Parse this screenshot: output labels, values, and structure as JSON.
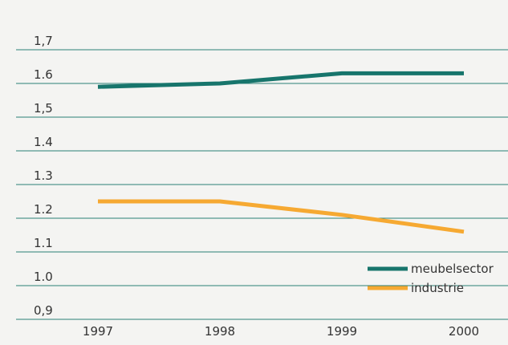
{
  "chart_data": {
    "type": "line",
    "x": [
      1997,
      1998,
      1999,
      2000
    ],
    "series": [
      {
        "name": "meubelsector",
        "color": "#17756c",
        "values": [
          1.59,
          1.6,
          1.63,
          1.63
        ]
      },
      {
        "name": "industrie",
        "color": "#f6a932",
        "values": [
          1.25,
          1.25,
          1.21,
          1.16
        ]
      }
    ],
    "ylim": [
      0.9,
      1.7
    ],
    "yticks": [
      {
        "value": 0.9,
        "label": "0,9"
      },
      {
        "value": 1.0,
        "label": "1.0"
      },
      1.1,
      1.2,
      1.3,
      1.4,
      {
        "value": 1.5,
        "label": "1,5"
      },
      1.6,
      {
        "value": 1.7,
        "label": "1,7"
      }
    ],
    "xlim": [
      1997,
      2000
    ],
    "grid": true,
    "legend": "lower right"
  }
}
